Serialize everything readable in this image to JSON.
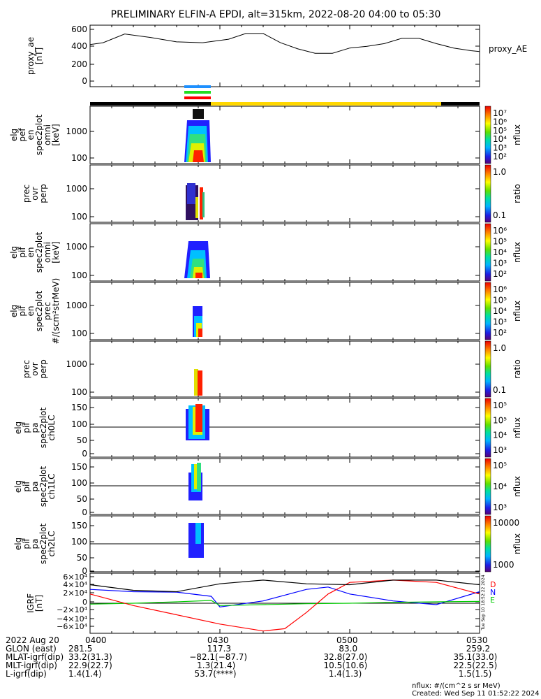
{
  "title": "PRELIMINARY ELFIN-A EPDI, alt=315km, 2022-08-20 04:00 to 05:30",
  "colors": {
    "black_bar": "#000000",
    "science_bar": "#ffd700",
    "blue_marker": "#1e90ff",
    "green_marker": "#22dd22",
    "red_marker": "#ff0000",
    "igrf_n": "#0000ff",
    "igrf_e": "#00cc00",
    "igrf_d": "#ff0000",
    "igrf_total": "#000000"
  },
  "chart_data": [
    {
      "type": "line",
      "ylabel": [
        "proxy_ae",
        "[nT]"
      ],
      "legend": "proxy_AE",
      "yticks": [
        "600",
        "400",
        "200",
        "0"
      ],
      "ylim": [
        -50,
        650
      ],
      "xlim": [
        0,
        90
      ],
      "x": [
        0,
        3,
        8,
        14,
        20,
        26,
        32,
        36,
        40,
        44,
        48,
        52,
        56,
        60,
        64,
        68,
        72,
        76,
        80,
        84,
        88,
        90
      ],
      "y": [
        430,
        450,
        550,
        510,
        460,
        450,
        490,
        555,
        555,
        450,
        380,
        330,
        330,
        390,
        410,
        440,
        500,
        500,
        440,
        390,
        360,
        350
      ]
    },
    {
      "type": "heatmap",
      "ylabel": [
        "elg",
        "pef",
        "en",
        "spec2plot",
        "omni",
        "[keV]"
      ],
      "yticks": [
        "1000",
        "100"
      ],
      "colorbar": {
        "ticks": [
          "10⁷",
          "10⁶",
          "10⁵",
          "10⁴",
          "10³",
          "10²"
        ],
        "label": "nflux"
      }
    },
    {
      "type": "heatmap",
      "ylabel": [
        "prec",
        "ovr",
        "perp"
      ],
      "yticks": [
        "1000",
        "100"
      ],
      "colorbar": {
        "ticks": [
          "1.0",
          "0.1"
        ],
        "label": "ratio"
      }
    },
    {
      "type": "heatmap",
      "ylabel": [
        "elg",
        "pif",
        "en",
        "spec2plot",
        "omni",
        "[keV]"
      ],
      "yticks": [
        "1000",
        "100"
      ],
      "colorbar": {
        "ticks": [
          "10⁶",
          "10⁵",
          "10⁴",
          "10³",
          "10²"
        ],
        "label": "nflux"
      }
    },
    {
      "type": "heatmap",
      "ylabel": [
        "elg",
        "pif",
        "en",
        "spec2plot",
        "prec",
        "#/(scm²strMeV)"
      ],
      "yticks": [
        "1000",
        "100"
      ],
      "colorbar": {
        "ticks": [
          "10⁶",
          "10⁵",
          "10⁴",
          "10³",
          "10²"
        ],
        "label": "nflux"
      }
    },
    {
      "type": "heatmap",
      "ylabel": [
        "prec",
        "ovr",
        "perp"
      ],
      "yticks": [
        "1000",
        "100"
      ],
      "colorbar": {
        "ticks": [
          "1.0",
          "0.1"
        ],
        "label": "ratio"
      }
    },
    {
      "type": "heatmap",
      "ylabel": [
        "elg",
        "pif",
        "pa",
        "spec2plot",
        "ch0LC"
      ],
      "yticks": [
        "150",
        "100",
        "50",
        "0"
      ],
      "colorbar": {
        "ticks": [
          "10⁵",
          "10⁵",
          "10⁴",
          "10³"
        ],
        "label": "nflux"
      }
    },
    {
      "type": "heatmap",
      "ylabel": [
        "elg",
        "pif",
        "pa",
        "spec2plot",
        "ch1LC"
      ],
      "yticks": [
        "150",
        "100",
        "50",
        "0"
      ],
      "colorbar": {
        "ticks": [
          "10⁵",
          "10⁴",
          "10³"
        ],
        "label": "nflux"
      }
    },
    {
      "type": "heatmap",
      "ylabel": [
        "elg",
        "pif",
        "pa",
        "spec2plot",
        "ch2LC"
      ],
      "yticks": [
        "150",
        "100",
        "50",
        "0"
      ],
      "colorbar": {
        "ticks": [
          "10000",
          "1000"
        ],
        "label": "nflux"
      }
    },
    {
      "type": "line",
      "ylabel": [
        "IGRF",
        "[nT]"
      ],
      "yticks": [
        "6×10⁴",
        "4×10⁴",
        "2×10⁴",
        "0",
        "−2×10⁴",
        "−4×10⁴",
        "−6×10⁴"
      ],
      "ylim": [
        -65000,
        65000
      ],
      "xlim": [
        0,
        90
      ],
      "legend": [
        "D",
        "N",
        "E"
      ],
      "stamp": "Tue Sep 10 18:52:22 2024",
      "series": [
        {
          "name": "N",
          "x": [
            0,
            10,
            20,
            28,
            30,
            40,
            50,
            55,
            60,
            70,
            80,
            90
          ],
          "y": [
            30000,
            25000,
            24000,
            15000,
            -8000,
            5000,
            30000,
            35000,
            20000,
            5000,
            -3000,
            25000
          ]
        },
        {
          "name": "E",
          "x": [
            0,
            10,
            20,
            28,
            30,
            40,
            50,
            60,
            70,
            80,
            90
          ],
          "y": [
            -2000,
            0,
            3000,
            6000,
            -5000,
            -3000,
            -1000,
            0,
            2000,
            3000,
            4000
          ]
        },
        {
          "name": "D",
          "x": [
            0,
            10,
            20,
            30,
            40,
            45,
            50,
            55,
            60,
            70,
            80,
            90
          ],
          "y": [
            20000,
            -5000,
            -25000,
            -45000,
            -60000,
            -55000,
            -20000,
            20000,
            45000,
            50000,
            45000,
            20000
          ]
        },
        {
          "x": [
            0,
            10,
            20,
            30,
            40,
            50,
            60,
            70,
            80,
            90
          ],
          "y": [
            40000,
            28000,
            25000,
            42000,
            50000,
            42000,
            40000,
            50000,
            50000,
            40000
          ]
        }
      ]
    }
  ],
  "xaxis": {
    "header": "2022 Aug 20",
    "ticks": [
      "0400",
      "0430",
      "0500",
      "0530"
    ],
    "rows": [
      {
        "label": "GLON (east)",
        "values": [
          "281.5",
          "117.3",
          "83.0",
          "259.2"
        ]
      },
      {
        "label": "MLAT-igrf(dip)",
        "values": [
          "33.2(31.3)",
          "−82.1(−87.7)",
          "32.8(27.0)",
          "35.1(33.0)"
        ]
      },
      {
        "label": "MLT-igrf(dip)",
        "values": [
          "22.9(22.7)",
          "1.3(21.4)",
          "10.5(10.6)",
          "22.5(22.5)"
        ]
      },
      {
        "label": "L-igrf(dip)",
        "values": [
          "1.4(1.4)",
          "53.7(****)",
          "1.4(1.3)",
          "1.5(1.5)"
        ]
      }
    ]
  },
  "footer": {
    "units": "nflux: #/(cm^2 s sr MeV)",
    "created": "Created: Wed Sep 11 01:52:22 2024"
  }
}
